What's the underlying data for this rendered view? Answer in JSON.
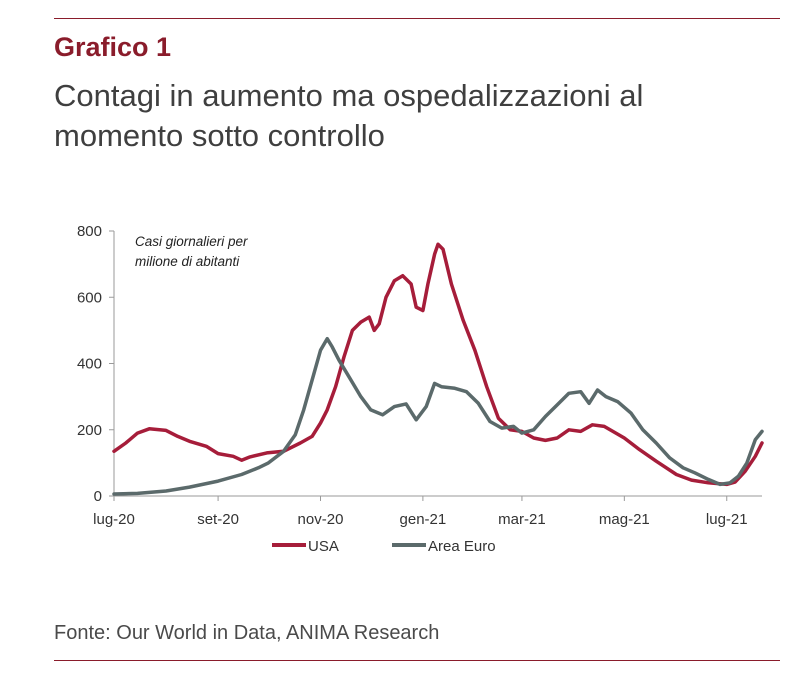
{
  "header": {
    "figure_label": "Grafico 1",
    "title": "Contagi in aumento ma ospedalizzazioni al momento sotto controllo"
  },
  "chart_data": {
    "type": "line",
    "annotation": "Casi giornalieri per milione di abitanti",
    "annotation_lines": [
      "Casi giornalieri per",
      "milione di abitanti"
    ],
    "ylim": [
      0,
      800
    ],
    "yticks": [
      0,
      200,
      400,
      600,
      800
    ],
    "x_range": [
      "2020-07-01",
      "2021-07-22"
    ],
    "xticks": [
      {
        "date": "2020-07-01",
        "label": "lug-20"
      },
      {
        "date": "2020-09-01",
        "label": "set-20"
      },
      {
        "date": "2020-11-01",
        "label": "nov-20"
      },
      {
        "date": "2021-01-01",
        "label": "gen-21"
      },
      {
        "date": "2021-03-01",
        "label": "mar-21"
      },
      {
        "date": "2021-05-01",
        "label": "mag-21"
      },
      {
        "date": "2021-07-01",
        "label": "lug-21"
      }
    ],
    "grid": false,
    "legend_position": "bottom-left",
    "series": [
      {
        "name": "USA",
        "color": "#a61d3a",
        "points": [
          [
            "2020-07-01",
            135
          ],
          [
            "2020-07-08",
            160
          ],
          [
            "2020-07-15",
            190
          ],
          [
            "2020-07-22",
            203
          ],
          [
            "2020-08-01",
            198
          ],
          [
            "2020-08-08",
            180
          ],
          [
            "2020-08-15",
            165
          ],
          [
            "2020-08-25",
            150
          ],
          [
            "2020-09-01",
            128
          ],
          [
            "2020-09-10",
            120
          ],
          [
            "2020-09-15",
            108
          ],
          [
            "2020-09-20",
            118
          ],
          [
            "2020-09-30",
            130
          ],
          [
            "2020-10-10",
            135
          ],
          [
            "2020-10-20",
            160
          ],
          [
            "2020-10-27",
            180
          ],
          [
            "2020-11-01",
            220
          ],
          [
            "2020-11-05",
            260
          ],
          [
            "2020-11-10",
            330
          ],
          [
            "2020-11-15",
            420
          ],
          [
            "2020-11-20",
            500
          ],
          [
            "2020-11-25",
            525
          ],
          [
            "2020-11-30",
            540
          ],
          [
            "2020-12-03",
            500
          ],
          [
            "2020-12-06",
            520
          ],
          [
            "2020-12-10",
            600
          ],
          [
            "2020-12-15",
            650
          ],
          [
            "2020-12-20",
            665
          ],
          [
            "2020-12-25",
            640
          ],
          [
            "2020-12-28",
            570
          ],
          [
            "2021-01-01",
            560
          ],
          [
            "2021-01-04",
            640
          ],
          [
            "2021-01-08",
            730
          ],
          [
            "2021-01-10",
            760
          ],
          [
            "2021-01-13",
            745
          ],
          [
            "2021-01-18",
            640
          ],
          [
            "2021-01-25",
            530
          ],
          [
            "2021-02-01",
            440
          ],
          [
            "2021-02-08",
            330
          ],
          [
            "2021-02-15",
            235
          ],
          [
            "2021-02-22",
            200
          ],
          [
            "2021-03-01",
            195
          ],
          [
            "2021-03-08",
            175
          ],
          [
            "2021-03-15",
            168
          ],
          [
            "2021-03-22",
            175
          ],
          [
            "2021-03-29",
            200
          ],
          [
            "2021-04-05",
            195
          ],
          [
            "2021-04-12",
            215
          ],
          [
            "2021-04-19",
            210
          ],
          [
            "2021-04-26",
            190
          ],
          [
            "2021-05-01",
            175
          ],
          [
            "2021-05-10",
            140
          ],
          [
            "2021-05-20",
            105
          ],
          [
            "2021-06-01",
            65
          ],
          [
            "2021-06-10",
            48
          ],
          [
            "2021-06-20",
            40
          ],
          [
            "2021-07-01",
            35
          ],
          [
            "2021-07-06",
            42
          ],
          [
            "2021-07-12",
            75
          ],
          [
            "2021-07-18",
            120
          ],
          [
            "2021-07-22",
            160
          ]
        ]
      },
      {
        "name": "Area Euro",
        "color": "#5b6a6b",
        "points": [
          [
            "2020-07-01",
            6
          ],
          [
            "2020-07-15",
            8
          ],
          [
            "2020-08-01",
            15
          ],
          [
            "2020-08-15",
            27
          ],
          [
            "2020-09-01",
            45
          ],
          [
            "2020-09-15",
            65
          ],
          [
            "2020-09-25",
            85
          ],
          [
            "2020-10-01",
            100
          ],
          [
            "2020-10-10",
            135
          ],
          [
            "2020-10-17",
            185
          ],
          [
            "2020-10-22",
            260
          ],
          [
            "2020-10-27",
            350
          ],
          [
            "2020-11-01",
            440
          ],
          [
            "2020-11-05",
            475
          ],
          [
            "2020-11-08",
            450
          ],
          [
            "2020-11-12",
            410
          ],
          [
            "2020-11-18",
            360
          ],
          [
            "2020-11-25",
            300
          ],
          [
            "2020-12-01",
            260
          ],
          [
            "2020-12-08",
            245
          ],
          [
            "2020-12-15",
            270
          ],
          [
            "2020-12-22",
            278
          ],
          [
            "2020-12-28",
            230
          ],
          [
            "2021-01-03",
            270
          ],
          [
            "2021-01-08",
            340
          ],
          [
            "2021-01-12",
            330
          ],
          [
            "2021-01-20",
            325
          ],
          [
            "2021-01-27",
            315
          ],
          [
            "2021-02-03",
            280
          ],
          [
            "2021-02-10",
            225
          ],
          [
            "2021-02-17",
            205
          ],
          [
            "2021-02-24",
            210
          ],
          [
            "2021-03-01",
            190
          ],
          [
            "2021-03-08",
            200
          ],
          [
            "2021-03-15",
            240
          ],
          [
            "2021-03-22",
            275
          ],
          [
            "2021-03-29",
            310
          ],
          [
            "2021-04-05",
            315
          ],
          [
            "2021-04-10",
            280
          ],
          [
            "2021-04-15",
            320
          ],
          [
            "2021-04-20",
            300
          ],
          [
            "2021-04-27",
            285
          ],
          [
            "2021-05-05",
            250
          ],
          [
            "2021-05-12",
            200
          ],
          [
            "2021-05-20",
            160
          ],
          [
            "2021-05-28",
            115
          ],
          [
            "2021-06-05",
            85
          ],
          [
            "2021-06-12",
            70
          ],
          [
            "2021-06-20",
            50
          ],
          [
            "2021-06-27",
            35
          ],
          [
            "2021-07-03",
            40
          ],
          [
            "2021-07-08",
            60
          ],
          [
            "2021-07-13",
            100
          ],
          [
            "2021-07-18",
            170
          ],
          [
            "2021-07-22",
            195
          ]
        ]
      }
    ]
  },
  "footer": {
    "source": "Fonte: Our World in Data, ANIMA Research"
  }
}
